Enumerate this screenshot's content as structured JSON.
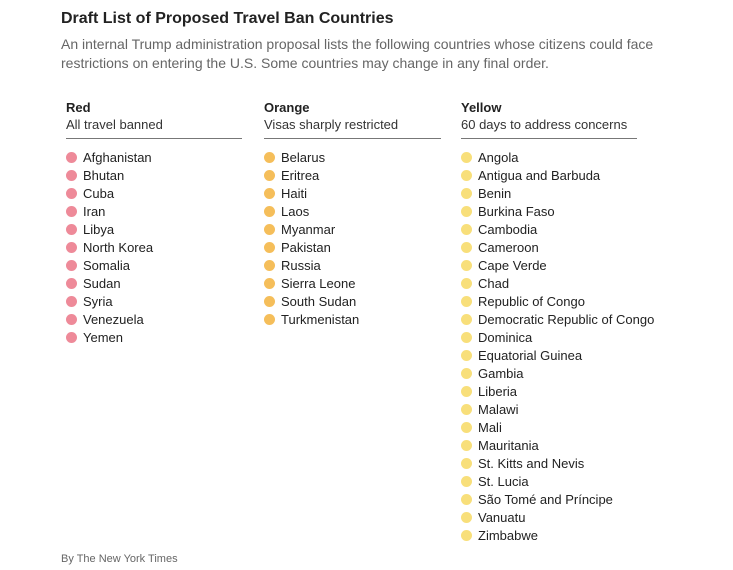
{
  "title": "Draft List of Proposed Travel Ban Countries",
  "subtitle": "An internal Trump administration proposal lists the following countries whose citizens could face restrictions on entering the U.S. Some countries may change in any final order.",
  "columns": [
    {
      "key": "red",
      "title": "Red",
      "subtitle": "All travel banned",
      "color": "#ee8a99",
      "countries": [
        "Afghanistan",
        "Bhutan",
        "Cuba",
        "Iran",
        "Libya",
        "North Korea",
        "Somalia",
        "Sudan",
        "Syria",
        "Venezuela",
        "Yemen"
      ]
    },
    {
      "key": "orange",
      "title": "Orange",
      "subtitle": "Visas sharply restricted",
      "color": "#f5be5a",
      "countries": [
        "Belarus",
        "Eritrea",
        "Haiti",
        "Laos",
        "Myanmar",
        "Pakistan",
        "Russia",
        "Sierra Leone",
        "South Sudan",
        "Turkmenistan"
      ]
    },
    {
      "key": "yellow",
      "title": "Yellow",
      "subtitle": "60 days to address concerns",
      "color": "#f8df7a",
      "countries": [
        "Angola",
        "Antigua and Barbuda",
        "Benin",
        "Burkina Faso",
        "Cambodia",
        "Cameroon",
        "Cape Verde",
        "Chad",
        "Republic of Congo",
        "Democratic Republic of Congo",
        "Dominica",
        "Equatorial Guinea",
        "Gambia",
        "Liberia",
        "Malawi",
        "Mali",
        "Mauritania",
        "St. Kitts and Nevis",
        "St. Lucia",
        "São Tomé and Príncipe",
        "Vanuatu",
        "Zimbabwe"
      ]
    }
  ],
  "credit": "By The New York Times"
}
